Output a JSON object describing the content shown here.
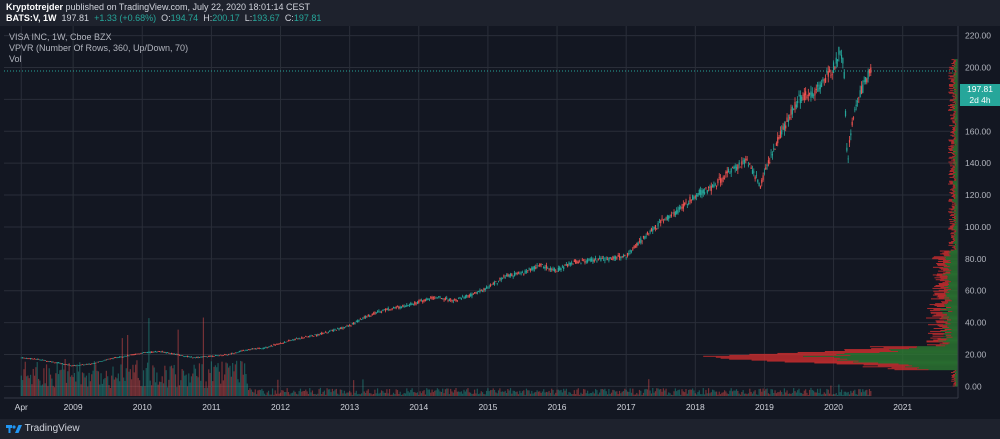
{
  "header": {
    "author": "Kryptotrejder",
    "published_text": "published on TradingView.com, July 22, 2020 18:01:14 CEST",
    "symbol": "BATS:V, 1W",
    "last": "197.81",
    "change": "+1.33 (+0.68%)",
    "open_label": "O:",
    "open": "194.74",
    "high_label": "H:",
    "high": "200.17",
    "low_label": "L:",
    "low": "193.67",
    "close_label": "C:",
    "close": "197.81"
  },
  "legend": {
    "title": "VISA INC, 1W, Cboe BZX",
    "indicator": "VPVR (Number Of Rows, 360, Up/Down, 70)",
    "volume": "Vol"
  },
  "price_tag": "197.81",
  "time_tag": "2d 4h",
  "footer": {
    "brand": "TradingView"
  },
  "colors": {
    "background": "#131722",
    "up": "#26a69a",
    "down": "#ef5350",
    "vpvr_up": "#2e7d32",
    "vpvr_down": "#d32f2f",
    "grid": "#2a2e39"
  },
  "chart_data": {
    "type": "candlestick",
    "title": "VISA INC, 1W, Cboe BZX",
    "x_tick_labels": [
      "Apr",
      "2009",
      "2010",
      "2011",
      "2012",
      "2013",
      "2014",
      "2015",
      "2016",
      "2017",
      "2018",
      "2019",
      "2020",
      "2021"
    ],
    "y_tick_labels": [
      "220.00",
      "200.00",
      "180.00",
      "160.00",
      "140.00",
      "120.00",
      "100.00",
      "80.00",
      "60.00",
      "40.00",
      "20.00",
      "0.00"
    ],
    "ylim": [
      -6,
      226
    ],
    "xlim": [
      2008.0,
      2021.8
    ],
    "grid": true,
    "series": [
      {
        "name": "price",
        "x": [
          2008.25,
          2008.5,
          2008.75,
          2009.0,
          2009.25,
          2009.5,
          2009.75,
          2010.0,
          2010.25,
          2010.5,
          2010.75,
          2011.0,
          2011.25,
          2011.5,
          2011.75,
          2012.0,
          2012.25,
          2012.5,
          2012.75,
          2013.0,
          2013.25,
          2013.5,
          2013.75,
          2014.0,
          2014.25,
          2014.5,
          2014.75,
          2014.9,
          2015.0,
          2015.25,
          2015.5,
          2015.75,
          2016.0,
          2016.25,
          2016.5,
          2016.75,
          2017.0,
          2017.25,
          2017.5,
          2017.75,
          2018.0,
          2018.25,
          2018.5,
          2018.75,
          2018.95,
          2019.0,
          2019.25,
          2019.5,
          2019.75,
          2020.0,
          2020.1,
          2020.15,
          2020.2,
          2020.25,
          2020.35,
          2020.5,
          2020.55
        ],
        "y": [
          18,
          17,
          15,
          13,
          14,
          17,
          19,
          21,
          22,
          20,
          18,
          19,
          20,
          23,
          24,
          27,
          30,
          32,
          35,
          38,
          44,
          48,
          50,
          53,
          56,
          54,
          57,
          60,
          62,
          69,
          71,
          76,
          73,
          78,
          79,
          80,
          82,
          93,
          103,
          110,
          120,
          125,
          135,
          142,
          125,
          135,
          160,
          180,
          185,
          200,
          212,
          200,
          140,
          160,
          180,
          195,
          197.81
        ]
      }
    ],
    "volume_profile": {
      "concentration_price_range": [
        10,
        25
      ],
      "peak_price": 18
    }
  }
}
